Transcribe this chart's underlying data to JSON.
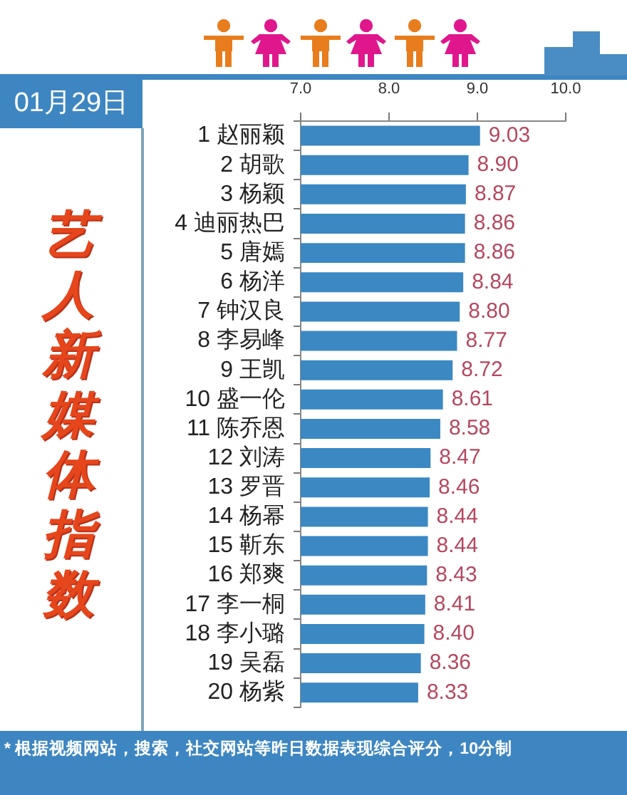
{
  "chart_data": {
    "type": "bar",
    "orientation": "horizontal",
    "title": "艺人新媒体指数",
    "subtitle": "01月29日",
    "categories": [
      "1 赵丽颖",
      "2 胡歌",
      "3 杨颖",
      "4 迪丽热巴",
      "5 唐嫣",
      "6 杨洋",
      "7 钟汉良",
      "8 李易峰",
      "9 王凯",
      "10 盛一伦",
      "11 陈乔恩",
      "12 刘涛",
      "13 罗晋",
      "14 杨幂",
      "15 靳东",
      "16 郑爽",
      "17 李一桐",
      "18 李小璐",
      "19 吴磊",
      "20 杨紫"
    ],
    "values": [
      9.03,
      8.9,
      8.87,
      8.86,
      8.86,
      8.84,
      8.8,
      8.77,
      8.72,
      8.61,
      8.58,
      8.47,
      8.46,
      8.44,
      8.44,
      8.43,
      8.41,
      8.4,
      8.36,
      8.33
    ],
    "value_labels": [
      "9.03",
      "8.90",
      "8.87",
      "8.86",
      "8.86",
      "8.84",
      "8.80",
      "8.77",
      "8.72",
      "8.61",
      "8.58",
      "8.47",
      "8.46",
      "8.44",
      "8.44",
      "8.43",
      "8.41",
      "8.40",
      "8.36",
      "8.33"
    ],
    "color": "#3b88c3",
    "xlim": [
      7,
      10
    ],
    "xticks": [
      {
        "value": 7,
        "label": "7.0"
      },
      {
        "value": 8,
        "label": "8.0"
      },
      {
        "value": 9,
        "label": "9.0"
      },
      {
        "value": 10,
        "label": "10.0"
      }
    ],
    "grid": false,
    "legend": false,
    "annotations": [
      "* 根据视频网站，搜索，社交网站等昨日数据表现综合评分，10分制"
    ]
  }
}
